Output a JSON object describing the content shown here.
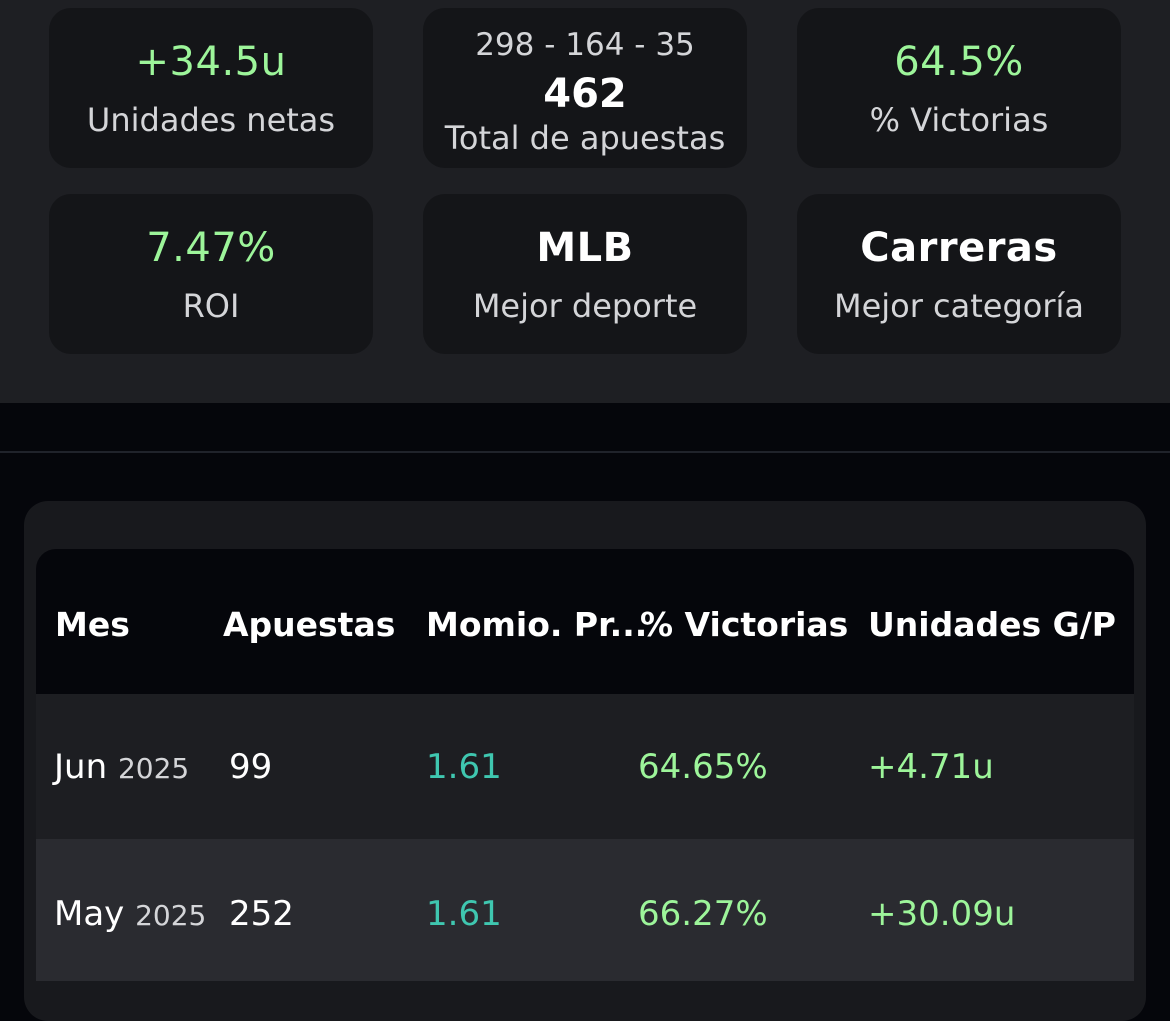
{
  "summary": {
    "net_units": {
      "value": "+34.5u",
      "label": "Unidades netas"
    },
    "total_bets": {
      "record": "298 - 164 - 35",
      "value": "462",
      "label": "Total de apuestas"
    },
    "win_pct": {
      "value": "64.5%",
      "label": "% Victorias"
    },
    "roi": {
      "value": "7.47%",
      "label": "ROI"
    },
    "best_sport": {
      "value": "MLB",
      "label": "Mejor deporte"
    },
    "best_category": {
      "value": "Carreras",
      "label": "Mejor categoría"
    }
  },
  "table": {
    "headers": [
      "Mes",
      "Apuestas",
      "Momio. Pr...",
      "% Victorias",
      "Unidades G/P"
    ],
    "rows": [
      {
        "month": "Jun",
        "year": "2025",
        "bets": "99",
        "avg_odds": "1.61",
        "win_pct": "64.65%",
        "units": "+4.71u"
      },
      {
        "month": "May",
        "year": "2025",
        "bets": "252",
        "avg_odds": "1.61",
        "win_pct": "66.27%",
        "units": "+30.09u"
      }
    ]
  },
  "colors": {
    "positive": "#9df59a",
    "odds": "#3fc7b0",
    "card_bg": "#141518",
    "page_bg": "#05060b"
  }
}
